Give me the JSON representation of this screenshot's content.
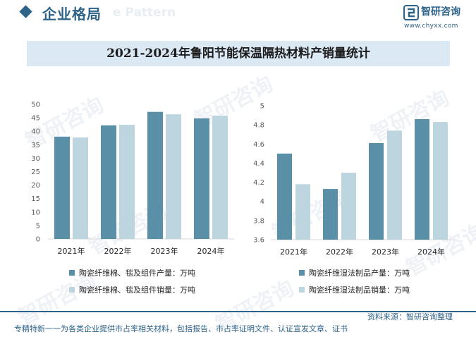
{
  "header": {
    "section_title": "企业格局",
    "background_text": "e Pattern"
  },
  "logo": {
    "name": "智研咨询",
    "url": "www.chyxx.com"
  },
  "chart_title": "2021-2024年鲁阳节能保温隔热材料产销量统计",
  "chart_data": [
    {
      "type": "bar",
      "categories": [
        "2021年",
        "2022年",
        "2023年",
        "2024年"
      ],
      "ylim": [
        0,
        50
      ],
      "yticks": [
        0,
        5,
        10,
        15,
        20,
        25,
        30,
        35,
        40,
        45,
        50
      ],
      "grid": false,
      "legend_position": "bottom",
      "series": [
        {
          "name": "陶瓷纤维棉、毯及组件产量：万吨",
          "color": "#5a8fa8",
          "values": [
            38.0,
            42.2,
            47.2,
            44.8
          ]
        },
        {
          "name": "陶瓷纤维棉、毯及组件销量：万吨",
          "color": "#bdd5df",
          "values": [
            37.7,
            42.4,
            46.3,
            45.8
          ]
        }
      ]
    },
    {
      "type": "bar",
      "categories": [
        "2021年",
        "2022年",
        "2023年",
        "2024年"
      ],
      "ylim": [
        3.6,
        5
      ],
      "yticks": [
        3.6,
        3.8,
        4,
        4.2,
        4.4,
        4.6,
        4.8,
        5
      ],
      "grid": false,
      "legend_position": "bottom",
      "series": [
        {
          "name": "陶瓷纤维湿法制品产量：万吨",
          "color": "#5a8fa8",
          "values": [
            4.5,
            4.13,
            4.61,
            4.86
          ]
        },
        {
          "name": "陶瓷纤维湿法制品销量：万吨",
          "color": "#bdd5df",
          "values": [
            4.18,
            4.3,
            4.74,
            4.83
          ]
        }
      ]
    }
  ],
  "footer": {
    "source": "资料来源：智研咨询整理",
    "tagline": "专精特新一一为各类企业提供市占率相关材料，包括报告、市占率证明文件、认证宣发文章、证书"
  },
  "watermark_text": "智研咨询"
}
